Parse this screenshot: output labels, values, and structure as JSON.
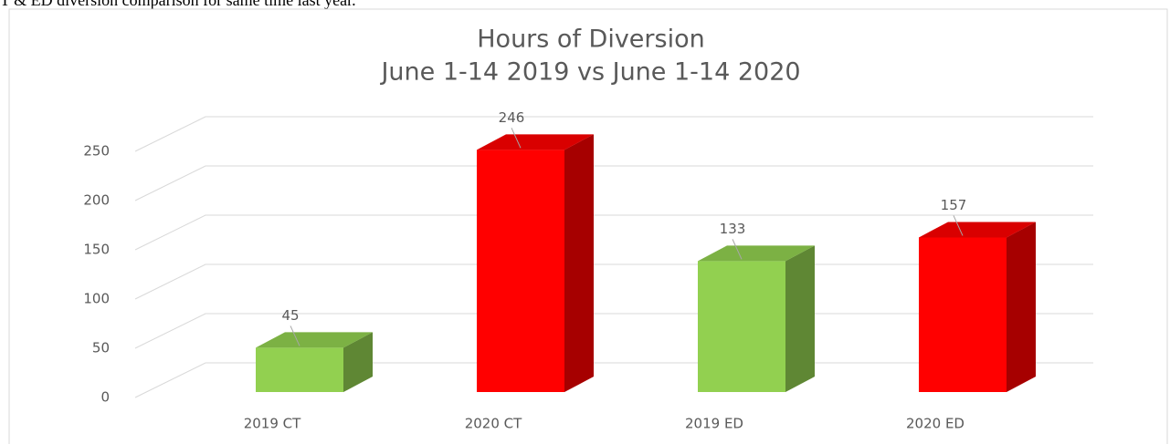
{
  "caption": "T & ED diversion comparison for same time last year.",
  "chart_data": {
    "type": "bar3d",
    "title": "Hours of Diversion",
    "subtitle": "June 1-14 2019 vs June 1-14 2020",
    "categories": [
      "2019 CT",
      "2020 CT",
      "2019 ED",
      "2020 ED"
    ],
    "values": [
      45,
      246,
      133,
      157
    ],
    "colors": [
      "#92d050",
      "#ff0000",
      "#92d050",
      "#ff0000"
    ],
    "ylim": [
      0,
      250
    ],
    "yticks": [
      0,
      50,
      100,
      150,
      200,
      250
    ],
    "grid": true
  }
}
